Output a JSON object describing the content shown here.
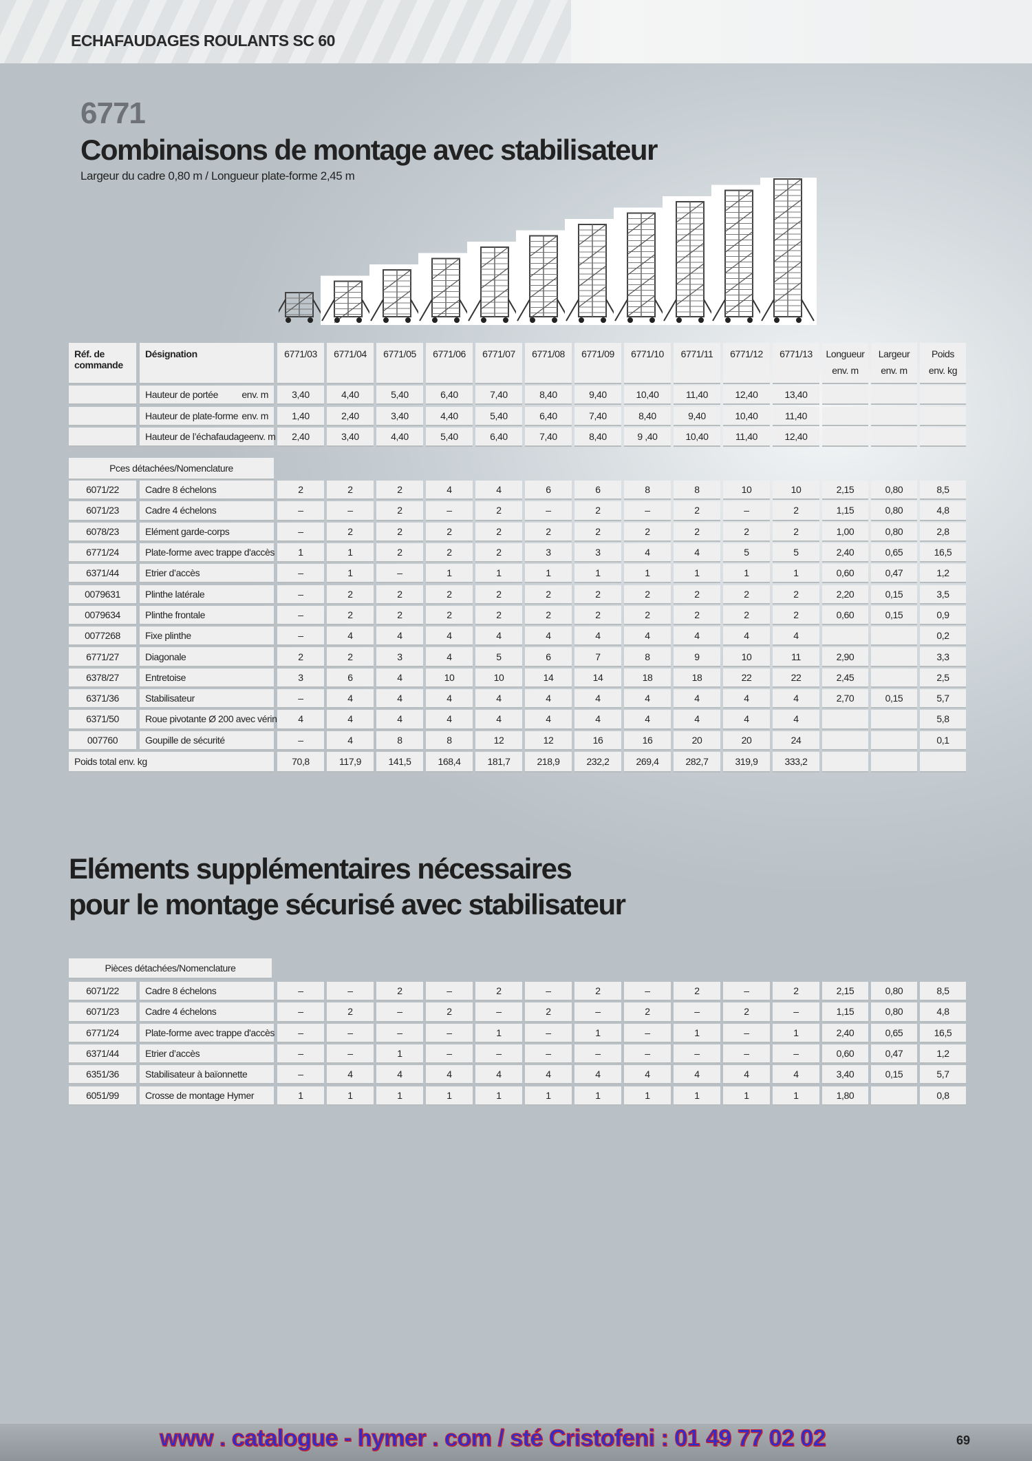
{
  "header": {
    "section_title": "ECHAFAUDAGES ROULANTS SC 60"
  },
  "product": {
    "number": "6771",
    "title": "Combinaisons de montage avec stabilisateur",
    "subtitle": "Largeur du cadre 0,80 m / Longueur plate-forme 2,45 m"
  },
  "table1": {
    "ref_header": "Réf. de commande",
    "designation_header": "Désignation",
    "columns": [
      "6771/03",
      "6771/04",
      "6771/05",
      "6771/06",
      "6771/07",
      "6771/08",
      "6771/09",
      "6771/10",
      "6771/11",
      "6771/12",
      "6771/13"
    ],
    "extra_headers": [
      [
        "Longueur",
        "env. m"
      ],
      [
        "Largeur",
        "env. m"
      ],
      [
        "Poids",
        "env. kg"
      ]
    ],
    "height_rows": [
      {
        "label": "Hauteur de portée",
        "unit": "env. m",
        "values": [
          "3,40",
          "4,40",
          "5,40",
          "6,40",
          "7,40",
          "8,40",
          "9,40",
          "10,40",
          "11,40",
          "12,40",
          "13,40"
        ]
      },
      {
        "label": "Hauteur de plate-forme",
        "unit": "env. m",
        "values": [
          "1,40",
          "2,40",
          "3,40",
          "4,40",
          "5,40",
          "6,40",
          "7,40",
          "8,40",
          "9,40",
          "10,40",
          "11,40"
        ]
      },
      {
        "label": "Hauteur de l’échafaudage",
        "unit": "env. m",
        "values": [
          "2,40",
          "3,40",
          "4,40",
          "5,40",
          "6,40",
          "7,40",
          "8,40",
          "9 ,40",
          "10,40",
          "11,40",
          "12,40"
        ]
      }
    ],
    "parts_header": "Pces détachées/Nomenclature",
    "parts": [
      {
        "ref": "6071/22",
        "name": "Cadre 8 échelons",
        "values": [
          "2",
          "2",
          "2",
          "4",
          "4",
          "6",
          "6",
          "8",
          "8",
          "10",
          "10"
        ],
        "len": "2,15",
        "wid": "0,80",
        "kg": "8,5"
      },
      {
        "ref": "6071/23",
        "name": "Cadre 4 échelons",
        "values": [
          "–",
          "–",
          "2",
          "–",
          "2",
          "–",
          "2",
          "–",
          "2",
          "–",
          "2"
        ],
        "len": "1,15",
        "wid": "0,80",
        "kg": "4,8"
      },
      {
        "ref": "6078/23",
        "name": "Elément garde-corps",
        "values": [
          "–",
          "2",
          "2",
          "2",
          "2",
          "2",
          "2",
          "2",
          "2",
          "2",
          "2"
        ],
        "len": "1,00",
        "wid": "0,80",
        "kg": "2,8"
      },
      {
        "ref": "6771/24",
        "name": "Plate-forme avec trappe d'accès",
        "values": [
          "1",
          "1",
          "2",
          "2",
          "2",
          "3",
          "3",
          "4",
          "4",
          "5",
          "5"
        ],
        "len": "2,40",
        "wid": "0,65",
        "kg": "16,5"
      },
      {
        "ref": "6371/44",
        "name": "Etrier d’accès",
        "values": [
          "–",
          "1",
          "–",
          "1",
          "1",
          "1",
          "1",
          "1",
          "1",
          "1",
          "1"
        ],
        "len": "0,60",
        "wid": "0,47",
        "kg": "1,2"
      },
      {
        "ref": "0079631",
        "name": "Plinthe latérale",
        "values": [
          "–",
          "2",
          "2",
          "2",
          "2",
          "2",
          "2",
          "2",
          "2",
          "2",
          "2"
        ],
        "len": "2,20",
        "wid": "0,15",
        "kg": "3,5"
      },
      {
        "ref": "0079634",
        "name": "Plinthe frontale",
        "values": [
          "–",
          "2",
          "2",
          "2",
          "2",
          "2",
          "2",
          "2",
          "2",
          "2",
          "2"
        ],
        "len": "0,60",
        "wid": "0,15",
        "kg": "0,9"
      },
      {
        "ref": "0077268",
        "name": "Fixe plinthe",
        "values": [
          "–",
          "4",
          "4",
          "4",
          "4",
          "4",
          "4",
          "4",
          "4",
          "4",
          "4"
        ],
        "len": "",
        "wid": "",
        "kg": "0,2"
      },
      {
        "ref": "6771/27",
        "name": "Diagonale",
        "values": [
          "2",
          "2",
          "3",
          "4",
          "5",
          "6",
          "7",
          "8",
          "9",
          "10",
          "11"
        ],
        "len": "2,90",
        "wid": "",
        "kg": "3,3"
      },
      {
        "ref": "6378/27",
        "name": "Entretoise",
        "values": [
          "3",
          "6",
          "4",
          "10",
          "10",
          "14",
          "14",
          "18",
          "18",
          "22",
          "22"
        ],
        "len": "2,45",
        "wid": "",
        "kg": "2,5"
      },
      {
        "ref": "6371/36",
        "name": "Stabilisateur",
        "values": [
          "–",
          "4",
          "4",
          "4",
          "4",
          "4",
          "4",
          "4",
          "4",
          "4",
          "4"
        ],
        "len": "2,70",
        "wid": "0,15",
        "kg": "5,7"
      },
      {
        "ref": "6371/50",
        "name": "Roue pivotante Ø 200 avec vérin",
        "values": [
          "4",
          "4",
          "4",
          "4",
          "4",
          "4",
          "4",
          "4",
          "4",
          "4",
          "4"
        ],
        "len": "",
        "wid": "",
        "kg": "5,8"
      },
      {
        "ref": "007760",
        "name": "Goupille de sécurité",
        "values": [
          "–",
          "4",
          "8",
          "8",
          "12",
          "12",
          "16",
          "16",
          "20",
          "20",
          "24"
        ],
        "len": "",
        "wid": "",
        "kg": "0,1"
      }
    ],
    "total_label": "Poids total env. kg",
    "totals": [
      "70,8",
      "117,9",
      "141,5",
      "168,4",
      "181,7",
      "218,9",
      "232,2",
      "269,4",
      "282,7",
      "319,9",
      "333,2"
    ]
  },
  "section2": {
    "title_line1": "Eléments supplémentaires nécessaires",
    "title_line2": "pour le montage sécurisé avec stabilisateur"
  },
  "table2": {
    "parts_header": "Pièces détachées/Nomenclature",
    "parts": [
      {
        "ref": "6071/22",
        "name": "Cadre 8 échelons",
        "values": [
          "–",
          "–",
          "2",
          "–",
          "2",
          "–",
          "2",
          "–",
          "2",
          "–",
          "2"
        ],
        "len": "2,15",
        "wid": "0,80",
        "kg": "8,5"
      },
      {
        "ref": "6071/23",
        "name": "Cadre 4 échelons",
        "values": [
          "–",
          "2",
          "–",
          "2",
          "–",
          "2",
          "–",
          "2",
          "–",
          "2",
          "–"
        ],
        "len": "1,15",
        "wid": "0,80",
        "kg": "4,8"
      },
      {
        "ref": "6771/24",
        "name": "Plate-forme avec trappe d'accès",
        "values": [
          "–",
          "–",
          "–",
          "–",
          "1",
          "–",
          "1",
          "–",
          "1",
          "–",
          "1"
        ],
        "len": "2,40",
        "wid": "0,65",
        "kg": "16,5"
      },
      {
        "ref": "6371/44",
        "name": "Etrier d’accès",
        "values": [
          "–",
          "–",
          "1",
          "–",
          "–",
          "–",
          "–",
          "–",
          "–",
          "–",
          "–"
        ],
        "len": "0,60",
        "wid": "0,47",
        "kg": "1,2"
      },
      {
        "ref": "6351/36",
        "name": "Stabilisateur à baïonnette",
        "values": [
          "–",
          "4",
          "4",
          "4",
          "4",
          "4",
          "4",
          "4",
          "4",
          "4",
          "4"
        ],
        "len": "3,40",
        "wid": "0,15",
        "kg": "5,7"
      },
      {
        "ref": "6051/99",
        "name": "Crosse de montage Hymer",
        "values": [
          "1",
          "1",
          "1",
          "1",
          "1",
          "1",
          "1",
          "1",
          "1",
          "1",
          "1"
        ],
        "len": "1,80",
        "wid": "",
        "kg": "0,8"
      }
    ]
  },
  "footer": {
    "link": "www . catalogue - hymer . com / sté Cristofeni : 01 49 77 02 02",
    "page": "69"
  }
}
